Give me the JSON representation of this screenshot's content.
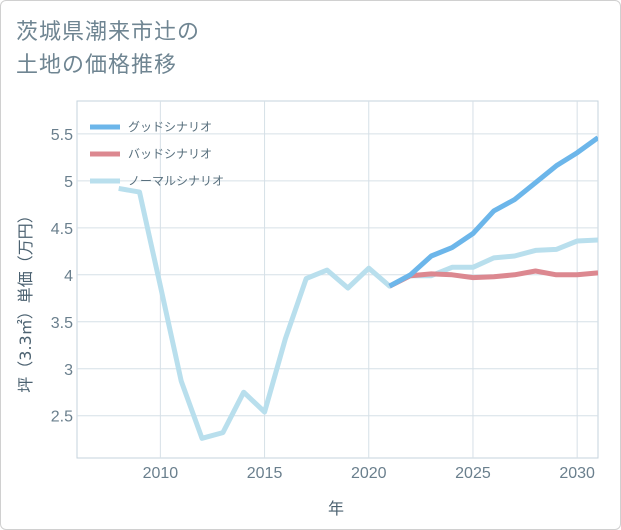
{
  "title_lines": [
    "茨城県潮来市辻の",
    "土地の価格推移"
  ],
  "chart_data": {
    "type": "line",
    "title": "茨城県潮来市辻の土地の価格推移",
    "xlabel": "年",
    "ylabel": "坪（3.3㎡）単価（万円）",
    "xlim": [
      2006,
      2031
    ],
    "ylim": [
      2.05,
      5.85
    ],
    "x_ticks": [
      2010,
      2015,
      2020,
      2025,
      2030
    ],
    "x_tick_labels": [
      "2010",
      "2015",
      "2020",
      "2025",
      "2030"
    ],
    "y_ticks": [
      2.5,
      3,
      3.5,
      4,
      4.5,
      5,
      5.5
    ],
    "y_tick_labels": [
      "2.5",
      "3",
      "3.5",
      "4",
      "4.5",
      "5",
      "5.5"
    ],
    "grid": true,
    "legend_position": "top-left",
    "series": [
      {
        "name": "グッドシナリオ",
        "color": "#6cb6ea",
        "x": [
          2021,
          2022,
          2023,
          2024,
          2025,
          2026,
          2027,
          2028,
          2029,
          2030,
          2031
        ],
        "y": [
          3.88,
          4.0,
          4.2,
          4.29,
          4.44,
          4.68,
          4.8,
          4.98,
          5.16,
          5.3,
          5.46
        ]
      },
      {
        "name": "バッドシナリオ",
        "color": "#dc8890",
        "x": [
          2021,
          2022,
          2023,
          2024,
          2025,
          2026,
          2027,
          2028,
          2029,
          2030,
          2031
        ],
        "y": [
          3.88,
          3.99,
          4.01,
          4.0,
          3.97,
          3.98,
          4.0,
          4.04,
          4.0,
          4.0,
          4.02
        ]
      },
      {
        "name": "ノーマルシナリオ",
        "color": "#b9dfed",
        "x": [
          2008,
          2009,
          2010,
          2011,
          2012,
          2013,
          2014,
          2015,
          2016,
          2017,
          2018,
          2019,
          2020,
          2021,
          2022,
          2023,
          2024,
          2025,
          2026,
          2027,
          2028,
          2029,
          2030,
          2031
        ],
        "y": [
          4.92,
          4.88,
          3.88,
          2.87,
          2.26,
          2.32,
          2.75,
          2.54,
          3.32,
          3.96,
          4.05,
          3.86,
          4.07,
          3.88,
          3.99,
          3.99,
          4.08,
          4.08,
          4.18,
          4.2,
          4.26,
          4.27,
          4.36,
          4.37
        ]
      }
    ]
  }
}
